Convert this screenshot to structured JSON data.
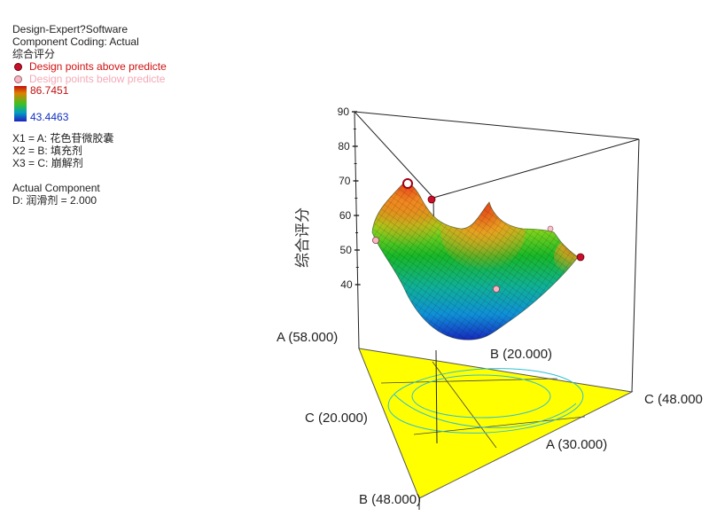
{
  "legend": {
    "line1": "Design-Expert?Software",
    "line2": "Component Coding: Actual",
    "response": "综合评分",
    "above": "Design points above predicte",
    "below": "Design points below predicte",
    "max": "86.7451",
    "min": "43.4463",
    "x1": "X1 = A: 花色苷微胶囊",
    "x2": "X2 = B: 填充剂",
    "x3": "X3 = C: 崩解剂",
    "actual_title": "Actual Component",
    "actual_value": "D: 润滑剂 = 2.000"
  },
  "colors": {
    "base": "#ffff00",
    "contour": "#30c0d0",
    "above_point": "#c8102e",
    "below_point": "#f6b7c2"
  },
  "chart_data": {
    "type": "surface3d",
    "zlabel": "综合评分",
    "zticks": [
      "40",
      "50",
      "60",
      "70",
      "80",
      "90"
    ],
    "zlim": [
      40,
      90
    ],
    "vertex_labels": {
      "A": "A (58.000)",
      "B_top": "B (20.000)",
      "C_right": "C (48.000",
      "C_left": "C (20.000)",
      "A_bottom": "A (30.000)",
      "B_bottom": "B (48.000)"
    },
    "points_above": [
      {
        "label": "p1",
        "z": 70
      },
      {
        "label": "p2",
        "z": 67
      },
      {
        "label": "p3",
        "z": 50
      }
    ],
    "points_below": [
      {
        "label": "p4",
        "z": 52
      },
      {
        "label": "p5",
        "z": 43
      }
    ]
  }
}
